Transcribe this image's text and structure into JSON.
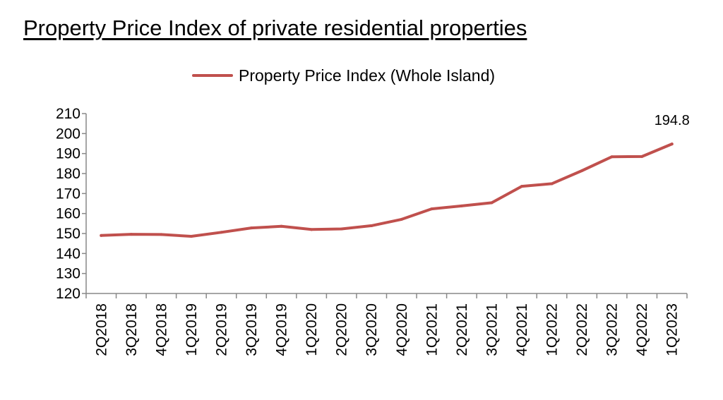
{
  "title": "Property Price Index of private residential properties",
  "chart_data": {
    "type": "line",
    "categories": [
      "2Q2018",
      "3Q2018",
      "4Q2018",
      "1Q2019",
      "2Q2019",
      "3Q2019",
      "4Q2019",
      "1Q2020",
      "2Q2020",
      "3Q2020",
      "4Q2020",
      "1Q2021",
      "2Q2021",
      "3Q2021",
      "4Q2021",
      "1Q2022",
      "2Q2022",
      "3Q2022",
      "4Q2022",
      "1Q2023"
    ],
    "series": [
      {
        "name": "Property Price Index (Whole Island)",
        "values": [
          149.0,
          149.6,
          149.5,
          148.6,
          150.6,
          152.8,
          153.6,
          152.0,
          152.3,
          153.9,
          157.1,
          162.3,
          163.8,
          165.4,
          173.6,
          174.9,
          181.4,
          188.4,
          188.5,
          194.8
        ],
        "color": "#c0504d"
      }
    ],
    "ylim": [
      120,
      210
    ],
    "yticks": [
      "210",
      "200",
      "190",
      "180",
      "170",
      "160",
      "150",
      "140",
      "130",
      "120"
    ],
    "data_label": {
      "text": "194.8"
    },
    "grid": false,
    "legend_position": "top-center"
  }
}
